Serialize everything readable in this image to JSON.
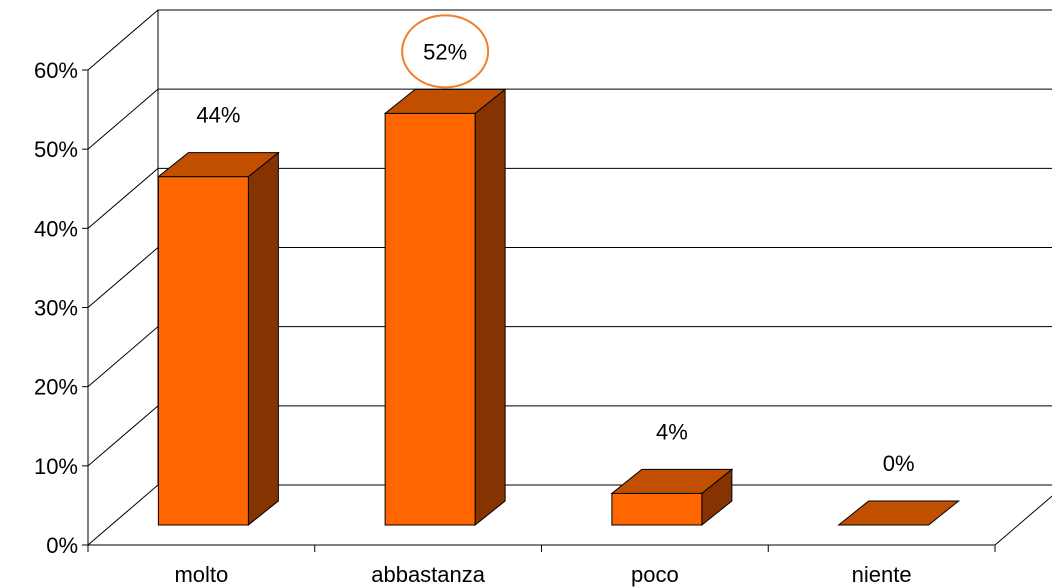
{
  "chart_data": {
    "type": "bar",
    "categories": [
      "molto",
      "abbastanza",
      "poco",
      "niente"
    ],
    "values": [
      44,
      52,
      4,
      0
    ],
    "data_labels": [
      "44%",
      "52%",
      "4%",
      "0%"
    ],
    "ylim": [
      0,
      60
    ],
    "yticks": [
      0,
      10,
      20,
      30,
      40,
      50,
      60
    ],
    "ytick_labels": [
      "0%",
      "10%",
      "20%",
      "30%",
      "40%",
      "50%",
      "60%"
    ],
    "grid": true,
    "legend": "none",
    "style": "3d-column",
    "highlighted_label": "52%",
    "colors": {
      "bar_front": "#FF6600",
      "bar_top": "#C04F00",
      "bar_side": "#853300",
      "highlight_circle": "#F07E2A",
      "grid": "#000000"
    }
  }
}
